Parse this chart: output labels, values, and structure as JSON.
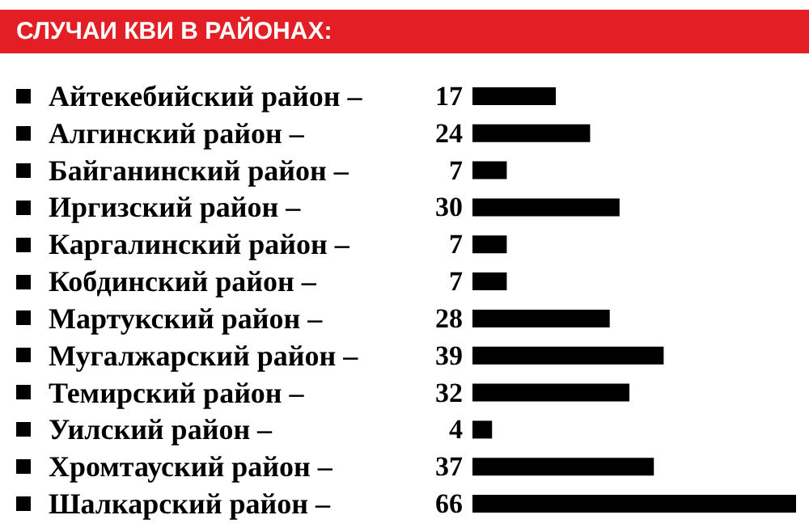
{
  "chart_data": {
    "type": "bar",
    "orientation": "horizontal",
    "title": "СЛУЧАИ КВИ В РАЙОНАХ:",
    "categories": [
      "Айтекебийский район –",
      "Алгинский район –",
      "Байганинский район –",
      "Иргизский район –",
      "Каргалинский район –",
      "Кобдинский район –",
      "Мартукский район –",
      "Мугалжарский район –",
      "Темирский район –",
      "Уилский район –",
      "Хромтауский район –",
      "Шалкарский район –"
    ],
    "values": [
      17,
      24,
      7,
      30,
      7,
      7,
      28,
      39,
      32,
      4,
      37,
      66
    ],
    "data_labels": true,
    "color": "#000000"
  }
}
